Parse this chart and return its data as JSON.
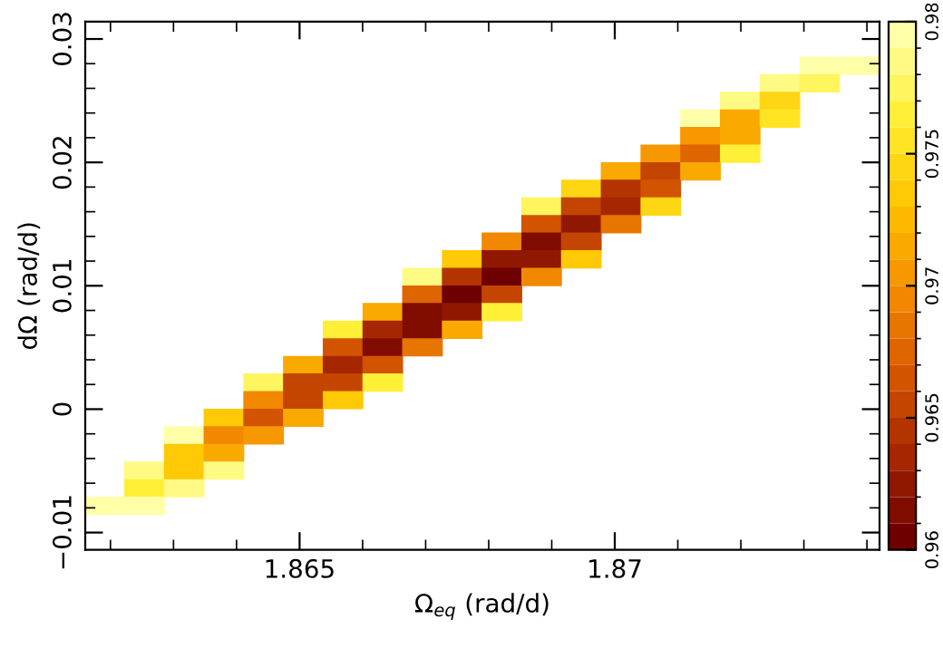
{
  "chart_data": {
    "type": "scatter",
    "xlabel": "Ω$_{eq}$ (rad/d)",
    "ylabel": "dΩ (rad/d)",
    "xlim": [
      1.8616,
      1.8742
    ],
    "ylim": [
      -0.0114,
      0.0314
    ],
    "xticks": [
      1.865,
      1.87
    ],
    "yticks": [
      {
        "value": -0.01,
        "label": "−0.01"
      },
      0,
      0.01,
      0.02,
      0.03
    ],
    "clim": [
      0.96,
      0.98
    ],
    "cticks": [
      0.96,
      0.965,
      0.97,
      0.975,
      0.98
    ],
    "marker": "square",
    "x": [
      1.87325,
      1.87388,
      1.87262,
      1.87325,
      1.87199,
      1.87262,
      1.87136,
      1.87199,
      1.87262,
      1.87136,
      1.87199,
      1.87073,
      1.87136,
      1.87199,
      1.8701,
      1.87073,
      1.87136,
      1.86947,
      1.8701,
      1.87073,
      1.86884,
      1.86947,
      1.8701,
      1.87073,
      1.86884,
      1.86947,
      1.8701,
      1.86821,
      1.86884,
      1.86947,
      1.86758,
      1.86821,
      1.86884,
      1.86947,
      1.86695,
      1.86758,
      1.86821,
      1.86884,
      1.86695,
      1.86758,
      1.86821,
      1.86632,
      1.86695,
      1.86758,
      1.86821,
      1.86569,
      1.86632,
      1.86695,
      1.86758,
      1.86569,
      1.86632,
      1.86695,
      1.86506,
      1.86569,
      1.86632,
      1.86443,
      1.86506,
      1.86569,
      1.86632,
      1.86443,
      1.86506,
      1.86569,
      1.8638,
      1.86443,
      1.86506,
      1.86317,
      1.8638,
      1.86443,
      1.86317,
      1.8638,
      1.86254,
      1.86317,
      1.8638,
      1.86254,
      1.86317,
      1.86192,
      1.86254
    ],
    "values": [
      0.02783,
      0.02783,
      0.02641,
      0.02641,
      0.02498,
      0.02498,
      0.02355,
      0.02355,
      0.02355,
      0.02213,
      0.02213,
      0.0207,
      0.0207,
      0.0207,
      0.01927,
      0.01927,
      0.01927,
      0.01785,
      0.01785,
      0.01785,
      0.01642,
      0.01642,
      0.01642,
      0.01642,
      0.01499,
      0.01499,
      0.01499,
      0.01357,
      0.01357,
      0.01357,
      0.01214,
      0.01214,
      0.01214,
      0.01214,
      0.01071,
      0.01071,
      0.01071,
      0.01071,
      0.00929,
      0.00929,
      0.00929,
      0.00786,
      0.00786,
      0.00786,
      0.00786,
      0.00643,
      0.00643,
      0.00643,
      0.00643,
      0.00501,
      0.00501,
      0.00501,
      0.00358,
      0.00358,
      0.00358,
      0.00215,
      0.00215,
      0.00215,
      0.00215,
      0.00073,
      0.00073,
      0.00073,
      -0.0007,
      -0.0007,
      -0.0007,
      -0.00213,
      -0.00213,
      -0.00213,
      -0.00356,
      -0.00356,
      -0.00498,
      -0.00498,
      -0.00498,
      -0.00641,
      -0.00641,
      -0.00784,
      -0.00784
    ],
    "cvalues": [
      0.979,
      0.979,
      0.978,
      0.977,
      0.978,
      0.974,
      0.979,
      0.971,
      0.975,
      0.97,
      0.971,
      0.97,
      0.967,
      0.976,
      0.971,
      0.965,
      0.971,
      0.974,
      0.964,
      0.966,
      0.977,
      0.965,
      0.963,
      0.974,
      0.966,
      0.962,
      0.968,
      0.969,
      0.961,
      0.965,
      0.973,
      0.962,
      0.962,
      0.973,
      0.978,
      0.964,
      0.96,
      0.969,
      0.967,
      0.96,
      0.965,
      0.971,
      0.961,
      0.962,
      0.976,
      0.976,
      0.963,
      0.961,
      0.971,
      0.966,
      0.961,
      0.968,
      0.971,
      0.963,
      0.966,
      0.977,
      0.965,
      0.965,
      0.976,
      0.969,
      0.965,
      0.973,
      0.973,
      0.966,
      0.971,
      0.979,
      0.969,
      0.97,
      0.973,
      0.971,
      0.978,
      0.973,
      0.978,
      0.976,
      0.978,
      0.979,
      0.979
    ]
  }
}
